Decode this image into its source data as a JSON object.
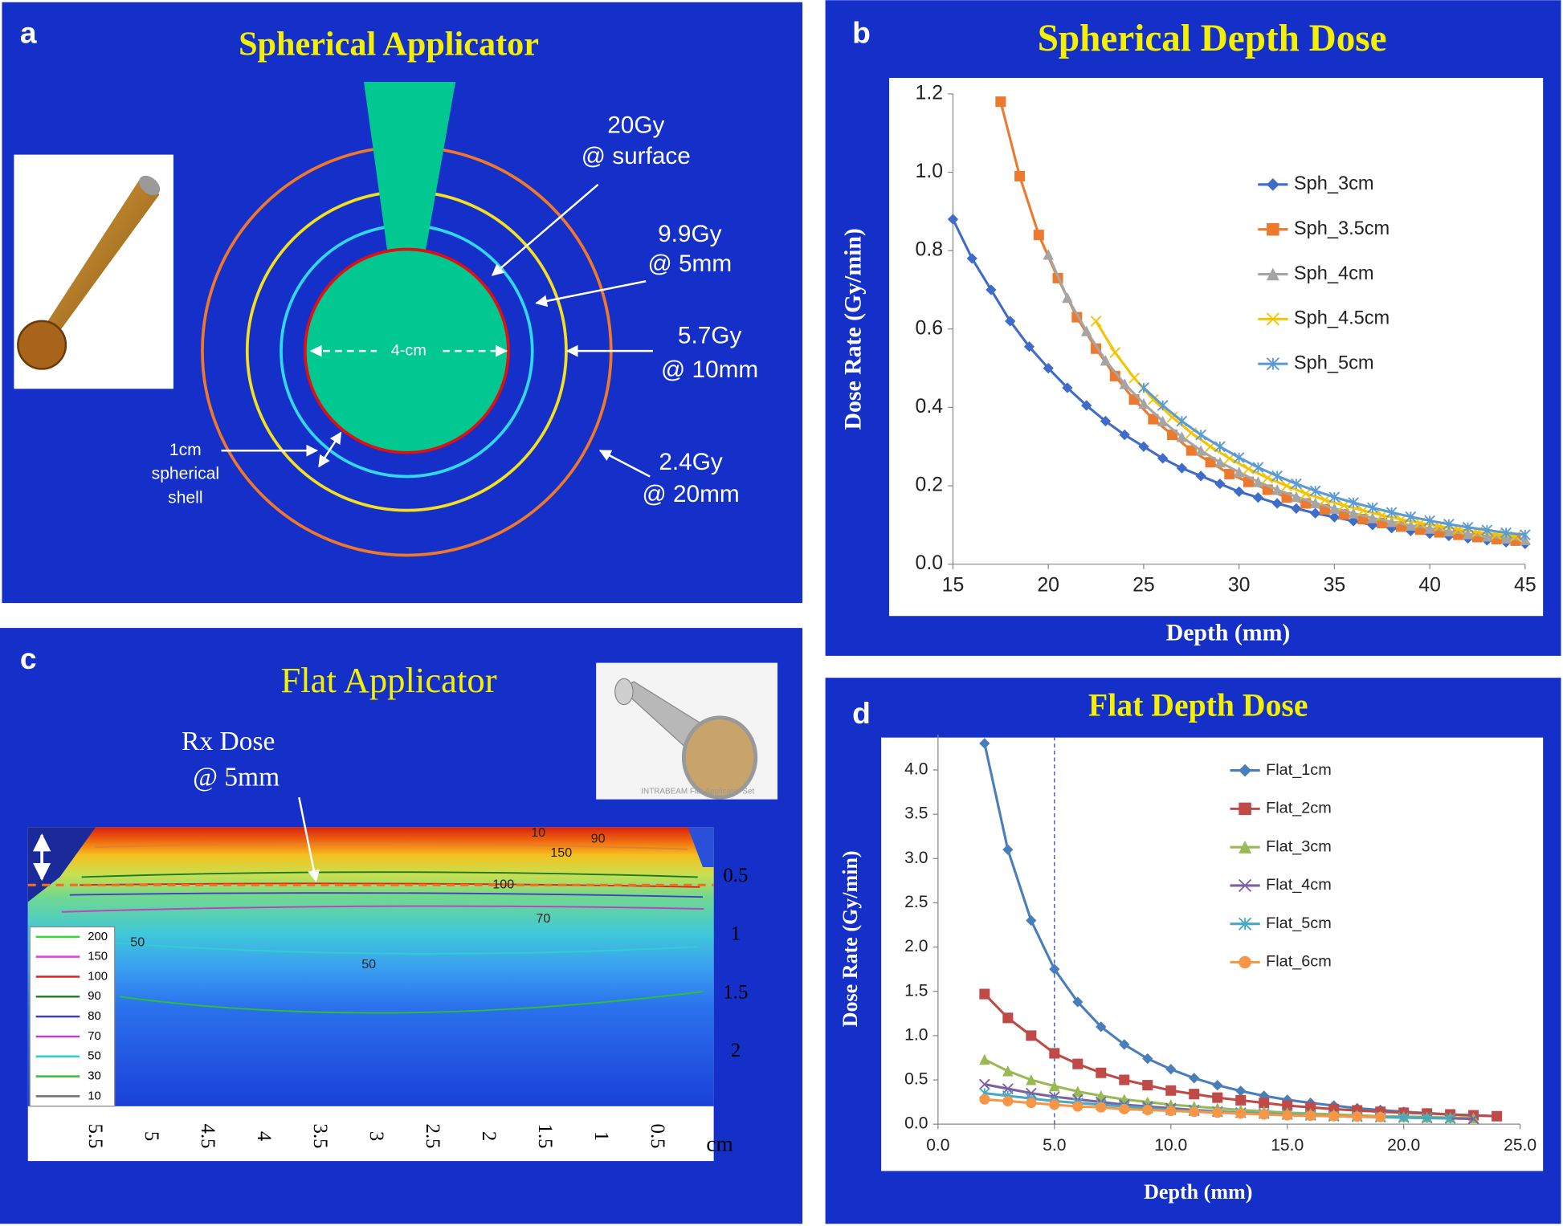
{
  "panels": {
    "a": {
      "label": "a",
      "title": "Spherical Applicator",
      "annotations": [
        [
          "20Gy",
          "@ surface"
        ],
        [
          "9.9Gy",
          "@ 5mm"
        ],
        [
          "5.7Gy",
          "@ 10mm"
        ],
        [
          "2.4Gy",
          "@ 20mm"
        ]
      ],
      "diameter": "4-cm",
      "shell": [
        "1cm",
        "spherical",
        "shell"
      ]
    },
    "c": {
      "label": "c",
      "title": "Flat Applicator",
      "rx": [
        "Rx Dose",
        "@ 5mm"
      ],
      "photo_caption": "INTRABEAM Flat Applicator Set",
      "xticks": [
        5.5,
        5,
        4.5,
        4,
        3.5,
        3,
        2.5,
        2,
        1.5,
        1,
        0.5
      ],
      "x_unit": "cm",
      "yticks": [
        0.5,
        1,
        1.5,
        2
      ],
      "contour_labels": [
        10,
        90,
        150,
        100,
        70,
        50,
        50
      ],
      "contour_legend": [
        {
          "level": 200,
          "color": "#3ad43a"
        },
        {
          "level": 150,
          "color": "#e040e0"
        },
        {
          "level": 100,
          "color": "#e02020"
        },
        {
          "level": 90,
          "color": "#207a20"
        },
        {
          "level": 80,
          "color": "#4040c0"
        },
        {
          "level": 70,
          "color": "#c040c0"
        },
        {
          "level": 50,
          "color": "#30d0d0"
        },
        {
          "level": 30,
          "color": "#30c030"
        },
        {
          "level": 10,
          "color": "#707070"
        }
      ]
    }
  },
  "chart_data": [
    {
      "type": "line",
      "panel_label": "b",
      "title": "Spherical Depth Dose",
      "x_label": "Depth (mm)",
      "y_label": "Dose Rate (Gy/min)",
      "xlim": [
        15,
        45
      ],
      "ylim": [
        0,
        1.2
      ],
      "xticks": [
        15,
        20,
        25,
        30,
        35,
        40,
        45
      ],
      "yticks": [
        {
          "value": 0,
          "label": "0.0"
        },
        0.2,
        0.4,
        0.6,
        0.8,
        {
          "value": 1,
          "label": "1.0"
        },
        1.2
      ],
      "grid": false,
      "legend": "right",
      "series": [
        {
          "name": "Sph_3cm",
          "color": "#3f6cc8",
          "marker": "diamond",
          "x": [
            15,
            16,
            17,
            18,
            19,
            20,
            21,
            22,
            23,
            24,
            25,
            26,
            27,
            28,
            29,
            30,
            31,
            32,
            33,
            34,
            35,
            36,
            37,
            38,
            39,
            40,
            41,
            42,
            43,
            44,
            45
          ],
          "values": [
            0.88,
            0.78,
            0.7,
            0.62,
            0.555,
            0.5,
            0.45,
            0.405,
            0.365,
            0.33,
            0.3,
            0.27,
            0.245,
            0.225,
            0.205,
            0.185,
            0.17,
            0.155,
            0.142,
            0.13,
            0.12,
            0.11,
            0.1,
            0.092,
            0.085,
            0.078,
            0.072,
            0.066,
            0.061,
            0.056,
            0.052
          ]
        },
        {
          "name": "Sph_3.5cm",
          "color": "#ec7a2e",
          "marker": "square",
          "x": [
            17.5,
            18.5,
            19.5,
            20.5,
            21.5,
            22.5,
            23.5,
            24.5,
            25.5,
            26.5,
            27.5,
            28.5,
            29.5,
            30.5,
            31.5,
            32.5,
            33.5,
            34.5,
            35.5,
            36.5,
            37.5,
            38.5,
            39.5,
            40.5,
            41.5,
            42.5,
            43.5,
            44.5
          ],
          "values": [
            1.18,
            0.99,
            0.84,
            0.73,
            0.63,
            0.55,
            0.48,
            0.42,
            0.37,
            0.33,
            0.29,
            0.26,
            0.23,
            0.21,
            0.19,
            0.17,
            0.155,
            0.14,
            0.127,
            0.115,
            0.105,
            0.096,
            0.088,
            0.081,
            0.075,
            0.069,
            0.064,
            0.06
          ]
        },
        {
          "name": "Sph_4cm",
          "color": "#a5a5a5",
          "marker": "triangle",
          "x": [
            20,
            21,
            22,
            23,
            24,
            25,
            26,
            27,
            28,
            29,
            30,
            31,
            32,
            33,
            34,
            35,
            36,
            37,
            38,
            39,
            40,
            41,
            42,
            43,
            44,
            45
          ],
          "values": [
            0.79,
            0.68,
            0.595,
            0.52,
            0.46,
            0.41,
            0.365,
            0.325,
            0.29,
            0.26,
            0.235,
            0.21,
            0.19,
            0.172,
            0.156,
            0.142,
            0.13,
            0.118,
            0.108,
            0.099,
            0.091,
            0.084,
            0.077,
            0.071,
            0.066,
            0.062
          ]
        },
        {
          "name": "Sph_4.5cm",
          "color": "#f5c400",
          "marker": "x",
          "x": [
            22.5,
            23.5,
            24.5,
            25.5,
            26.5,
            27.5,
            28.5,
            29.5,
            30.5,
            31.5,
            32.5,
            33.5,
            34.5,
            35.5,
            36.5,
            37.5,
            38.5,
            39.5,
            40.5,
            41.5,
            42.5,
            43.5,
            44.5
          ],
          "values": [
            0.62,
            0.54,
            0.475,
            0.42,
            0.375,
            0.335,
            0.3,
            0.27,
            0.243,
            0.22,
            0.2,
            0.18,
            0.164,
            0.15,
            0.137,
            0.125,
            0.114,
            0.105,
            0.097,
            0.089,
            0.082,
            0.076,
            0.071
          ]
        },
        {
          "name": "Sph_5cm",
          "color": "#5b9bd5",
          "marker": "star",
          "x": [
            25,
            26,
            27,
            28,
            29,
            30,
            31,
            32,
            33,
            34,
            35,
            36,
            37,
            38,
            39,
            40,
            41,
            42,
            43,
            44,
            45
          ],
          "values": [
            0.45,
            0.405,
            0.365,
            0.33,
            0.3,
            0.272,
            0.247,
            0.225,
            0.205,
            0.187,
            0.171,
            0.157,
            0.144,
            0.132,
            0.121,
            0.111,
            0.102,
            0.094,
            0.087,
            0.08,
            0.075
          ]
        }
      ]
    },
    {
      "type": "line",
      "panel_label": "d",
      "title": "Flat Depth Dose",
      "x_label": "Depth (mm)",
      "y_label": "Dose Rate (Gy/min)",
      "xlim": [
        0,
        25
      ],
      "ylim": [
        0,
        4.4
      ],
      "xticks": [
        {
          "value": 0,
          "label": "0.0"
        },
        {
          "value": 5,
          "label": "5.0"
        },
        {
          "value": 10,
          "label": "10.0"
        },
        {
          "value": 15,
          "label": "15.0"
        },
        {
          "value": 20,
          "label": "20.0"
        },
        {
          "value": 25,
          "label": "25.0"
        }
      ],
      "yticks": [
        {
          "value": 0,
          "label": "0.0"
        },
        0.5,
        {
          "value": 1,
          "label": "1.0"
        },
        1.5,
        {
          "value": 2,
          "label": "2.0"
        },
        2.5,
        {
          "value": 3,
          "label": "3.0"
        },
        3.5,
        {
          "value": 4,
          "label": "4.0"
        }
      ],
      "grid": false,
      "legend": "right",
      "vline": 5,
      "series": [
        {
          "name": "Flat_1cm",
          "color": "#4a7ebb",
          "marker": "diamond",
          "x": [
            2,
            3,
            4,
            5,
            6,
            7,
            8,
            9,
            10,
            11,
            12,
            13,
            14,
            15,
            16,
            17,
            18,
            19,
            20,
            21,
            22,
            23,
            24
          ],
          "values": [
            4.3,
            3.1,
            2.3,
            1.75,
            1.38,
            1.1,
            0.9,
            0.74,
            0.62,
            0.52,
            0.44,
            0.375,
            0.32,
            0.275,
            0.24,
            0.21,
            0.18,
            0.16,
            0.14,
            0.125,
            0.11,
            0.1,
            0.09
          ]
        },
        {
          "name": "Flat_2cm",
          "color": "#be4b48",
          "marker": "square",
          "x": [
            2,
            3,
            4,
            5,
            6,
            7,
            8,
            9,
            10,
            11,
            12,
            13,
            14,
            15,
            16,
            17,
            18,
            19,
            20,
            21,
            22,
            23,
            24
          ],
          "values": [
            1.47,
            1.2,
            1.0,
            0.8,
            0.68,
            0.58,
            0.5,
            0.44,
            0.38,
            0.34,
            0.3,
            0.27,
            0.24,
            0.21,
            0.19,
            0.17,
            0.155,
            0.14,
            0.13,
            0.12,
            0.11,
            0.1,
            0.09
          ]
        },
        {
          "name": "Flat_3cm",
          "color": "#98b954",
          "marker": "triangle",
          "x": [
            2,
            3,
            4,
            5,
            6,
            7,
            8,
            9,
            10,
            11,
            12,
            13,
            14,
            15,
            16,
            17,
            18,
            19,
            20,
            21,
            22,
            23
          ],
          "values": [
            0.73,
            0.6,
            0.5,
            0.43,
            0.37,
            0.32,
            0.28,
            0.25,
            0.22,
            0.2,
            0.18,
            0.16,
            0.145,
            0.13,
            0.12,
            0.11,
            0.1,
            0.09,
            0.085,
            0.08,
            0.075,
            0.07
          ]
        },
        {
          "name": "Flat_4cm",
          "color": "#7d60a0",
          "marker": "x",
          "x": [
            2,
            3,
            4,
            5,
            6,
            7,
            8,
            9,
            10,
            11,
            12,
            13,
            14,
            15,
            16,
            17,
            18,
            19,
            20,
            21,
            22,
            23
          ],
          "values": [
            0.45,
            0.4,
            0.35,
            0.31,
            0.28,
            0.25,
            0.22,
            0.2,
            0.18,
            0.16,
            0.145,
            0.13,
            0.12,
            0.11,
            0.1,
            0.09,
            0.085,
            0.08,
            0.075,
            0.07,
            0.065,
            0.06
          ]
        },
        {
          "name": "Flat_5cm",
          "color": "#46aac5",
          "marker": "star",
          "x": [
            2,
            3,
            4,
            5,
            6,
            7,
            8,
            9,
            10,
            11,
            12,
            13,
            14,
            15,
            16,
            17,
            18,
            19,
            20,
            21,
            22
          ],
          "values": [
            0.35,
            0.32,
            0.29,
            0.26,
            0.24,
            0.22,
            0.2,
            0.18,
            0.16,
            0.15,
            0.14,
            0.13,
            0.12,
            0.11,
            0.1,
            0.09,
            0.085,
            0.08,
            0.075,
            0.07,
            0.065
          ]
        },
        {
          "name": "Flat_6cm",
          "color": "#f79646",
          "marker": "circle",
          "x": [
            2,
            3,
            4,
            5,
            6,
            7,
            8,
            9,
            10,
            11,
            12,
            13,
            14,
            15,
            16,
            17,
            18,
            19
          ],
          "values": [
            0.28,
            0.26,
            0.24,
            0.22,
            0.2,
            0.19,
            0.17,
            0.16,
            0.15,
            0.14,
            0.13,
            0.12,
            0.11,
            0.1,
            0.095,
            0.09,
            0.085,
            0.08
          ]
        }
      ]
    }
  ]
}
